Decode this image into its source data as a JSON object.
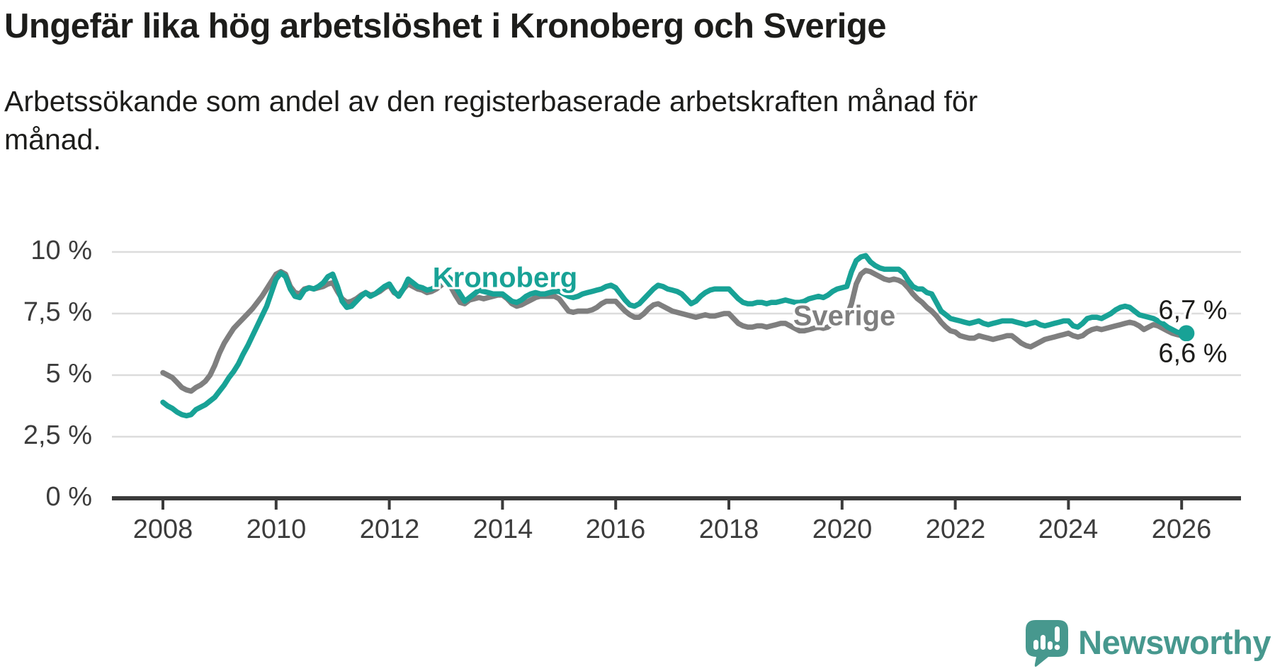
{
  "header": {
    "title": "Ungefär lika hög arbetslöshet i Kronoberg och Sverige",
    "subtitle": "Arbetssökande som andel av den registerbaserade arbetskraften månad för månad."
  },
  "chart": {
    "series_labels": {
      "kronoberg": "Kronoberg",
      "sverige": "Sverige"
    },
    "end_labels": {
      "kronoberg": "6,7 %",
      "sverige": "6,6 %"
    },
    "colors": {
      "kronoberg_line": "#18a296",
      "sverige_line": "#7f7f7f",
      "gridline": "#dcdcdc",
      "axis": "#3a3a3a",
      "text": "#1d1d1b"
    }
  },
  "chart_data": {
    "type": "line",
    "title": "Ungefär lika hög arbetslöshet i Kronoberg och Sverige",
    "subtitle": "Arbetssökande som andel av den registerbaserade arbetskraften månad för månad.",
    "x_start": "2008-01",
    "frequency": "monthly",
    "unit": "%",
    "ylim": [
      0,
      10.5
    ],
    "y_tick_labels": [
      "0 %",
      "2,5 %",
      "5 %",
      "7,5 %",
      "10 %"
    ],
    "y_tick_values": [
      0,
      2.5,
      5,
      7.5,
      10
    ],
    "x_tick_labels": [
      "2008",
      "2010",
      "2012",
      "2014",
      "2016",
      "2018",
      "2020",
      "2022",
      "2024",
      "2026"
    ],
    "x_tick_years": [
      2008,
      2010,
      2012,
      2014,
      2016,
      2018,
      2020,
      2022,
      2024,
      2026
    ],
    "grid": true,
    "legend_position": "inline-labels",
    "end_values": {
      "Kronoberg": "6,7 %",
      "Sverige": "6,6 %"
    },
    "series": [
      {
        "name": "Kronoberg",
        "color": "#18a296",
        "values": [
          3.9,
          3.75,
          3.65,
          3.5,
          3.4,
          3.35,
          3.4,
          3.6,
          3.7,
          3.8,
          3.95,
          4.1,
          4.35,
          4.6,
          4.9,
          5.15,
          5.45,
          5.85,
          6.2,
          6.6,
          7.0,
          7.4,
          7.8,
          8.35,
          8.9,
          9.15,
          9.0,
          8.5,
          8.2,
          8.15,
          8.45,
          8.55,
          8.5,
          8.6,
          8.75,
          9.0,
          9.1,
          8.6,
          8.0,
          7.75,
          7.8,
          8.0,
          8.2,
          8.35,
          8.2,
          8.3,
          8.45,
          8.6,
          8.7,
          8.4,
          8.2,
          8.5,
          8.9,
          8.75,
          8.6,
          8.55,
          8.45,
          8.5,
          8.6,
          8.8,
          9.05,
          8.9,
          8.6,
          8.3,
          8.0,
          8.15,
          8.3,
          8.45,
          8.4,
          8.35,
          8.3,
          8.3,
          8.3,
          8.15,
          8.0,
          7.95,
          8.05,
          8.2,
          8.3,
          8.35,
          8.3,
          8.3,
          8.35,
          8.4,
          8.4,
          8.3,
          8.2,
          8.15,
          8.2,
          8.3,
          8.35,
          8.4,
          8.45,
          8.5,
          8.6,
          8.65,
          8.55,
          8.3,
          8.05,
          7.85,
          7.8,
          7.9,
          8.1,
          8.3,
          8.5,
          8.65,
          8.6,
          8.5,
          8.45,
          8.4,
          8.3,
          8.1,
          7.9,
          8.0,
          8.2,
          8.35,
          8.45,
          8.5,
          8.5,
          8.5,
          8.5,
          8.3,
          8.1,
          7.95,
          7.9,
          7.9,
          7.95,
          7.95,
          7.9,
          7.95,
          7.95,
          8.0,
          8.05,
          8.0,
          7.95,
          7.95,
          8.0,
          8.1,
          8.15,
          8.2,
          8.15,
          8.25,
          8.4,
          8.5,
          8.55,
          8.6,
          9.2,
          9.65,
          9.8,
          9.85,
          9.6,
          9.45,
          9.35,
          9.3,
          9.3,
          9.3,
          9.3,
          9.15,
          8.85,
          8.6,
          8.5,
          8.5,
          8.35,
          8.3,
          7.95,
          7.6,
          7.45,
          7.3,
          7.25,
          7.2,
          7.15,
          7.1,
          7.15,
          7.2,
          7.1,
          7.05,
          7.1,
          7.15,
          7.2,
          7.2,
          7.2,
          7.15,
          7.1,
          7.05,
          7.1,
          7.15,
          7.05,
          7.0,
          7.05,
          7.1,
          7.15,
          7.2,
          7.2,
          7.0,
          6.95,
          7.1,
          7.3,
          7.35,
          7.35,
          7.3,
          7.4,
          7.5,
          7.65,
          7.75,
          7.8,
          7.75,
          7.6,
          7.45,
          7.4,
          7.35,
          7.3,
          7.2,
          7.1,
          6.95,
          6.85,
          6.75,
          6.7,
          6.7
        ]
      },
      {
        "name": "Sverige",
        "color": "#7f7f7f",
        "values": [
          5.1,
          5.0,
          4.9,
          4.7,
          4.5,
          4.4,
          4.35,
          4.5,
          4.6,
          4.75,
          5.0,
          5.4,
          5.9,
          6.3,
          6.6,
          6.9,
          7.1,
          7.3,
          7.5,
          7.7,
          7.95,
          8.2,
          8.5,
          8.8,
          9.1,
          9.2,
          9.1,
          8.6,
          8.35,
          8.3,
          8.5,
          8.55,
          8.5,
          8.55,
          8.6,
          8.7,
          8.75,
          8.4,
          8.1,
          7.95,
          8.0,
          8.1,
          8.25,
          8.35,
          8.25,
          8.3,
          8.4,
          8.55,
          8.65,
          8.35,
          8.25,
          8.5,
          8.7,
          8.6,
          8.5,
          8.45,
          8.35,
          8.4,
          8.5,
          8.65,
          8.8,
          8.6,
          8.25,
          7.95,
          7.9,
          8.05,
          8.1,
          8.15,
          8.1,
          8.15,
          8.2,
          8.25,
          8.25,
          8.1,
          7.9,
          7.8,
          7.85,
          7.95,
          8.05,
          8.15,
          8.2,
          8.2,
          8.2,
          8.2,
          8.1,
          7.85,
          7.6,
          7.55,
          7.6,
          7.6,
          7.6,
          7.65,
          7.75,
          7.9,
          8.0,
          8.0,
          8.0,
          7.8,
          7.6,
          7.45,
          7.35,
          7.35,
          7.5,
          7.7,
          7.85,
          7.9,
          7.8,
          7.7,
          7.6,
          7.55,
          7.5,
          7.45,
          7.4,
          7.35,
          7.4,
          7.45,
          7.4,
          7.4,
          7.45,
          7.5,
          7.5,
          7.3,
          7.1,
          7.0,
          6.95,
          6.95,
          7.0,
          7.0,
          6.95,
          7.0,
          7.05,
          7.1,
          7.1,
          7.0,
          6.9,
          6.8,
          6.8,
          6.85,
          6.9,
          6.95,
          6.9,
          6.95,
          7.1,
          7.3,
          7.4,
          7.4,
          7.9,
          8.7,
          9.1,
          9.25,
          9.2,
          9.1,
          9.0,
          8.9,
          8.85,
          8.9,
          8.85,
          8.75,
          8.55,
          8.3,
          8.1,
          7.95,
          7.75,
          7.6,
          7.4,
          7.15,
          6.95,
          6.8,
          6.75,
          6.6,
          6.55,
          6.5,
          6.5,
          6.6,
          6.55,
          6.5,
          6.45,
          6.5,
          6.55,
          6.6,
          6.6,
          6.45,
          6.3,
          6.2,
          6.15,
          6.25,
          6.35,
          6.45,
          6.5,
          6.55,
          6.6,
          6.65,
          6.7,
          6.6,
          6.55,
          6.6,
          6.75,
          6.85,
          6.9,
          6.85,
          6.9,
          6.95,
          7.0,
          7.05,
          7.1,
          7.15,
          7.1,
          7.0,
          6.85,
          6.95,
          7.05,
          7.0,
          6.9,
          6.8,
          6.7,
          6.65,
          6.6,
          6.6
        ]
      }
    ]
  },
  "footer": {
    "brand": "Newsworthy"
  }
}
